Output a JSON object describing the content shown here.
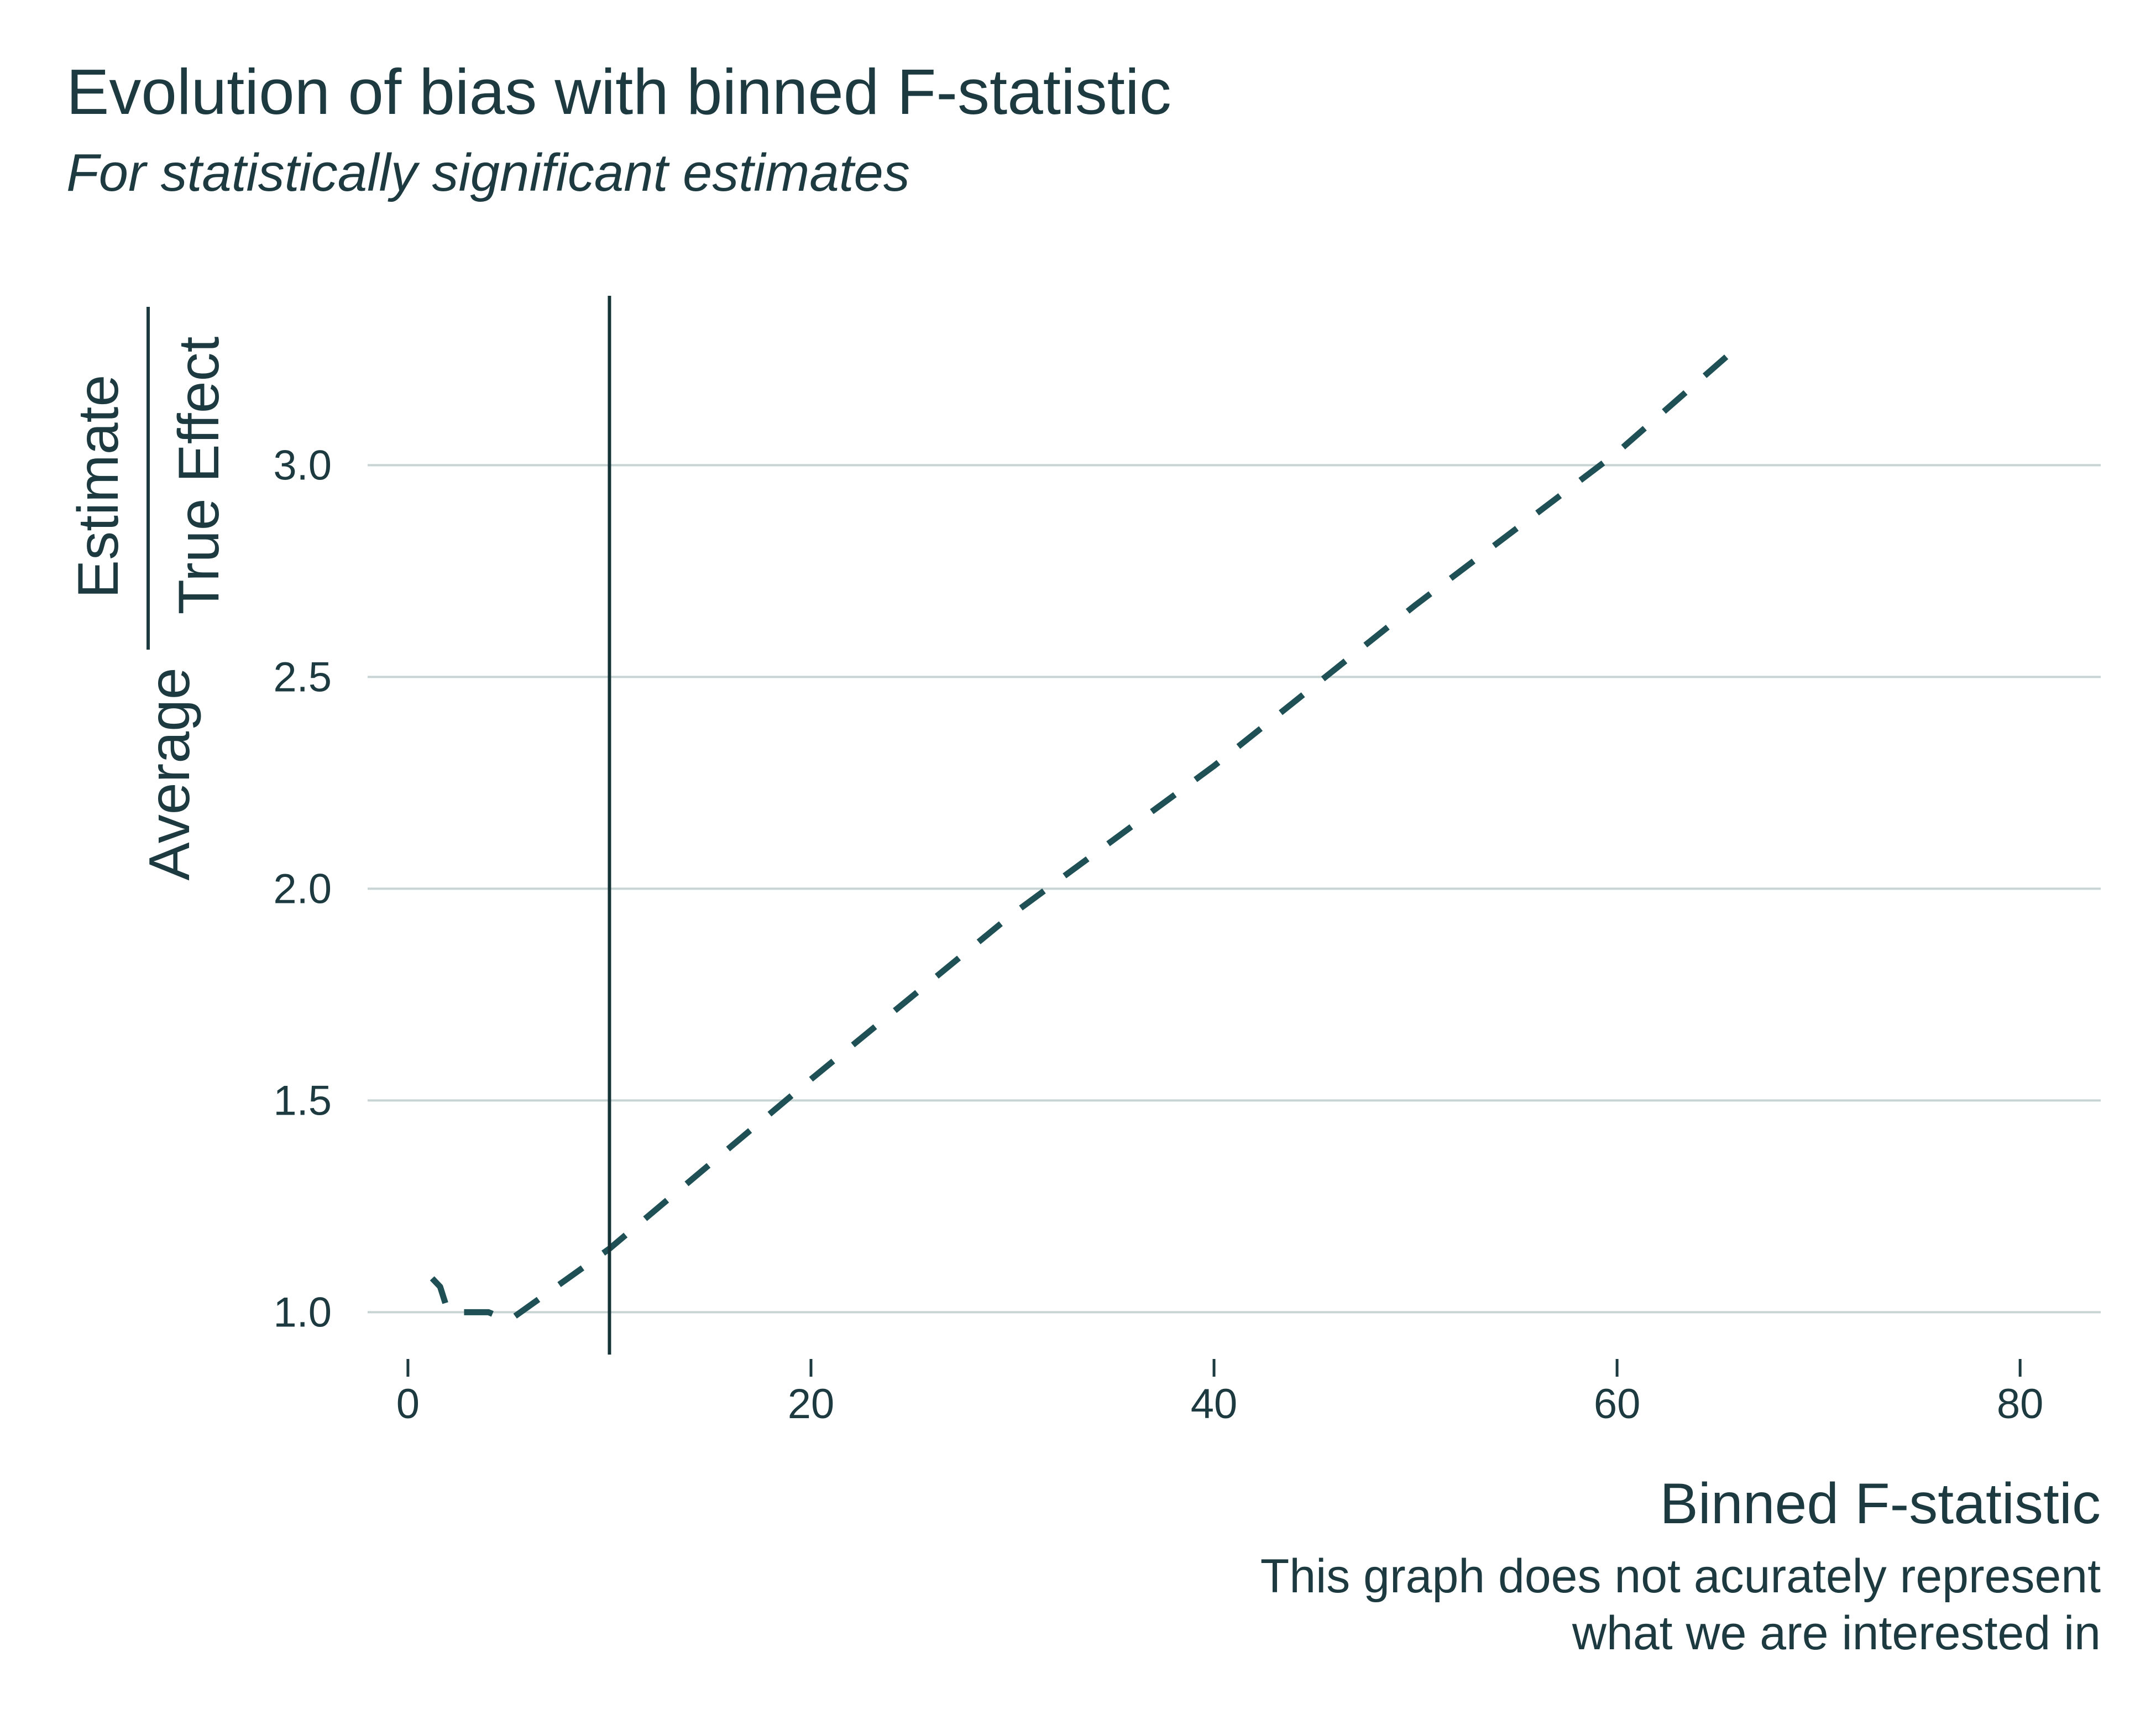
{
  "title": "Evolution of bias with binned F-statistic",
  "subtitle": "For statistically significant estimates",
  "caption_line1": "This graph does not acurately represent",
  "caption_line2": "what we are interested in",
  "colors": {
    "text": "#1c3a40",
    "line": "#1e5055",
    "grid": "#c8d4d4",
    "vline": "#163438"
  },
  "chart_data": {
    "type": "line",
    "xlabel": "Binned F-statistic",
    "ylabel_prefix": "Average",
    "ylabel_numerator": "Estimate",
    "ylabel_denominator": "True Effect",
    "xlim": [
      -2,
      84
    ],
    "ylim": [
      0.9,
      3.4
    ],
    "x_ticks": [
      0,
      20,
      40,
      60,
      80
    ],
    "x_tick_labels": [
      "0",
      "20",
      "40",
      "60",
      "80"
    ],
    "y_ticks": [
      1.0,
      1.5,
      2.0,
      2.5,
      3.0
    ],
    "y_tick_labels": [
      "1.0",
      "1.5",
      "2.0",
      "2.5",
      "3.0"
    ],
    "grid": "horizontal",
    "line_style": "dashed",
    "reference_line_x": 10,
    "series": [
      {
        "x": [
          1.2,
          1.6,
          2.0,
          3.0,
          4.0,
          5.0,
          10,
          20,
          30,
          40,
          50,
          60,
          66
        ],
        "y": [
          1.08,
          1.06,
          1.0,
          1.0,
          1.0,
          0.98,
          1.15,
          1.55,
          1.94,
          2.29,
          2.67,
          3.03,
          3.28
        ]
      }
    ]
  }
}
